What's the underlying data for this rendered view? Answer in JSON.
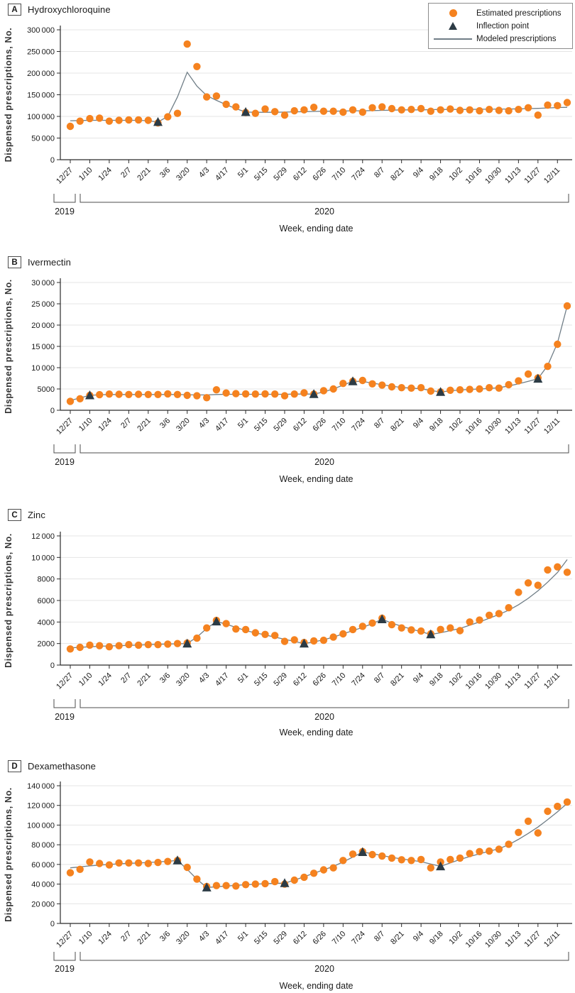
{
  "figure": {
    "ylabel": "Dispensed prescriptions, No.",
    "xlabel": "Week, ending date",
    "year_left": "2019",
    "year_right": "2020",
    "legend": [
      {
        "label": "Estimated prescriptions",
        "marker": "circle"
      },
      {
        "label": "Inflection point",
        "marker": "triangle"
      },
      {
        "label": "Modeled prescriptions",
        "marker": "line"
      }
    ],
    "colors": {
      "estimated": "#F5821F",
      "inflection": "#2C3B45",
      "modeled": "#707E87",
      "grid": "#E4E4E4",
      "axis": "#2b2b2b",
      "text": "#1a1a1a"
    }
  },
  "weeks": [
    "12/27",
    "1/3",
    "1/10",
    "1/17",
    "1/24",
    "1/31",
    "2/7",
    "2/14",
    "2/21",
    "2/28",
    "3/6",
    "3/13",
    "3/20",
    "3/27",
    "4/3",
    "4/10",
    "4/17",
    "4/24",
    "5/1",
    "5/8",
    "5/15",
    "5/22",
    "5/29",
    "6/5",
    "6/12",
    "6/19",
    "6/26",
    "7/3",
    "7/10",
    "7/17",
    "7/24",
    "7/31",
    "8/7",
    "8/14",
    "8/21",
    "8/28",
    "9/4",
    "9/11",
    "9/18",
    "9/25",
    "10/2",
    "10/9",
    "10/16",
    "10/23",
    "10/30",
    "11/6",
    "11/13",
    "11/20",
    "11/27",
    "12/4",
    "12/11",
    "12/18"
  ],
  "x_tick_labels": [
    "12/27",
    "1/10",
    "1/24",
    "2/7",
    "2/21",
    "3/6",
    "3/20",
    "4/3",
    "4/17",
    "5/1",
    "5/15",
    "5/29",
    "6/12",
    "6/26",
    "7/10",
    "7/24",
    "8/7",
    "8/21",
    "9/4",
    "9/18",
    "10/2",
    "10/16",
    "10/30",
    "11/13",
    "11/27",
    "12/11"
  ],
  "chart_data": [
    {
      "panel": "A",
      "title": "Hydroxychloroquine",
      "type": "scatter",
      "xlabel": "Week, ending date",
      "ylabel": "Dispensed prescriptions, No.",
      "ylim": [
        0,
        300000
      ],
      "y_tick_labels": [
        "0",
        "50 000",
        "100 000",
        "150 000",
        "200 000",
        "250 000",
        "300 000"
      ],
      "grid": true,
      "legend_position": "top-right",
      "series": [
        {
          "name": "Estimated prescriptions",
          "values": [
            77000,
            89000,
            95000,
            96000,
            89000,
            91000,
            92000,
            92000,
            91000,
            85000,
            99000,
            107000,
            267000,
            215000,
            145000,
            147000,
            128000,
            122000,
            109000,
            107000,
            117000,
            111000,
            103000,
            113000,
            115000,
            121000,
            112000,
            112000,
            110000,
            115000,
            110000,
            120000,
            122000,
            118000,
            115000,
            116000,
            118000,
            112000,
            115000,
            117000,
            114000,
            115000,
            113000,
            116000,
            114000,
            113000,
            116000,
            120000,
            103000,
            126000,
            125000,
            132000
          ]
        },
        {
          "name": "Modeled prescriptions",
          "values": [
            90000,
            90500,
            91000,
            91000,
            91000,
            91000,
            91000,
            91000,
            90000,
            87000,
            100000,
            145000,
            202000,
            170000,
            148000,
            137000,
            127000,
            118000,
            110000,
            109500,
            109500,
            109500,
            110000,
            110500,
            111000,
            111500,
            112000,
            112000,
            112500,
            113000,
            113000,
            113500,
            114000,
            114500,
            115000,
            115000,
            115000,
            115500,
            116000,
            116000,
            116000,
            116000,
            116500,
            116500,
            117000,
            117000,
            117500,
            118000,
            118500,
            119500,
            120500,
            121000
          ]
        }
      ],
      "inflection_points": [
        {
          "week": "2/28",
          "value": 87000
        },
        {
          "week": "5/1",
          "value": 110000
        }
      ]
    },
    {
      "panel": "B",
      "title": "Ivermectin",
      "type": "scatter",
      "xlabel": "Week, ending date",
      "ylabel": "Dispensed prescriptions, No.",
      "ylim": [
        0,
        30000
      ],
      "y_tick_labels": [
        "0",
        "5000",
        "10 000",
        "15 000",
        "20 000",
        "25 000",
        "30 000"
      ],
      "grid": true,
      "series": [
        {
          "name": "Estimated prescriptions",
          "values": [
            2100,
            2700,
            3500,
            3650,
            3800,
            3750,
            3700,
            3750,
            3700,
            3700,
            3850,
            3700,
            3500,
            3400,
            2950,
            4800,
            4050,
            3900,
            3850,
            3800,
            3850,
            3800,
            3400,
            3800,
            4100,
            3800,
            4600,
            5000,
            6300,
            6800,
            7000,
            6200,
            5900,
            5500,
            5300,
            5200,
            5300,
            4500,
            4300,
            4700,
            4800,
            4900,
            5000,
            5300,
            5200,
            6000,
            6900,
            8500,
            7600,
            10300,
            15500,
            24500
          ]
        },
        {
          "name": "Modeled prescriptions",
          "values": [
            2300,
            2900,
            3500,
            3650,
            3700,
            3700,
            3700,
            3700,
            3700,
            3700,
            3700,
            3700,
            3650,
            3600,
            3600,
            3700,
            3750,
            3750,
            3750,
            3750,
            3750,
            3750,
            3750,
            3800,
            3800,
            3800,
            4300,
            5000,
            5900,
            6800,
            6750,
            6400,
            6000,
            5650,
            5350,
            5200,
            5050,
            4650,
            4300,
            4550,
            4750,
            4900,
            5000,
            5100,
            5300,
            5700,
            6200,
            6800,
            7400,
            10500,
            15800,
            24500
          ]
        }
      ],
      "inflection_points": [
        {
          "week": "1/10",
          "value": 3500
        },
        {
          "week": "6/19",
          "value": 3800
        },
        {
          "week": "7/17",
          "value": 6800
        },
        {
          "week": "9/18",
          "value": 4300
        },
        {
          "week": "11/27",
          "value": 7400
        }
      ]
    },
    {
      "panel": "C",
      "title": "Zinc",
      "type": "scatter",
      "xlabel": "Week, ending date",
      "ylabel": "Dispensed prescriptions, No.",
      "ylim": [
        0,
        12000
      ],
      "y_tick_labels": [
        "0",
        "2000",
        "4000",
        "6000",
        "8000",
        "10 000",
        "12 000"
      ],
      "grid": true,
      "series": [
        {
          "name": "Estimated prescriptions",
          "values": [
            1500,
            1650,
            1850,
            1800,
            1700,
            1800,
            1900,
            1850,
            1900,
            1900,
            1950,
            2000,
            2050,
            2500,
            3450,
            4150,
            3850,
            3350,
            3300,
            3000,
            2850,
            2750,
            2200,
            2350,
            2100,
            2250,
            2300,
            2600,
            2900,
            3300,
            3600,
            3900,
            4350,
            3750,
            3450,
            3270,
            3160,
            2900,
            3310,
            3450,
            3200,
            4000,
            4180,
            4630,
            4790,
            5330,
            6760,
            7630,
            7410,
            8840,
            9120,
            8620
          ]
        },
        {
          "name": "Modeled prescriptions",
          "values": [
            1600,
            1650,
            1700,
            1750,
            1780,
            1800,
            1830,
            1860,
            1900,
            1930,
            1960,
            1980,
            2000,
            2600,
            3400,
            4050,
            3800,
            3500,
            3200,
            3000,
            2800,
            2600,
            2400,
            2200,
            2000,
            2150,
            2350,
            2600,
            2900,
            3200,
            3500,
            3850,
            4250,
            3900,
            3600,
            3350,
            3100,
            2850,
            3000,
            3200,
            3400,
            3700,
            4000,
            4350,
            4700,
            5100,
            5600,
            6200,
            6900,
            7700,
            8600,
            9800
          ]
        }
      ],
      "inflection_points": [
        {
          "week": "3/20",
          "value": 2000
        },
        {
          "week": "4/10",
          "value": 4050
        },
        {
          "week": "6/12",
          "value": 2000
        },
        {
          "week": "8/7",
          "value": 4250
        },
        {
          "week": "9/11",
          "value": 2850
        }
      ]
    },
    {
      "panel": "D",
      "title": "Dexamethasone",
      "type": "scatter",
      "xlabel": "Week, ending date",
      "ylabel": "Dispensed prescriptions, No.",
      "ylim": [
        0,
        140000
      ],
      "y_tick_labels": [
        "0",
        "20 000",
        "40 000",
        "60 000",
        "80 000",
        "100 000",
        "120 000",
        "140 000"
      ],
      "grid": true,
      "series": [
        {
          "name": "Estimated prescriptions",
          "values": [
            51500,
            55000,
            62500,
            61000,
            59500,
            61500,
            61500,
            61500,
            61000,
            62000,
            63000,
            64000,
            57000,
            45000,
            37500,
            38500,
            38500,
            38000,
            39500,
            40000,
            40500,
            42500,
            40000,
            44000,
            47000,
            51000,
            54500,
            56500,
            64000,
            70500,
            73000,
            70000,
            68500,
            66500,
            64700,
            64000,
            65000,
            56500,
            62500,
            65000,
            66500,
            71000,
            73000,
            73500,
            75500,
            80500,
            92500,
            104000,
            92000,
            114000,
            119000,
            123500
          ]
        },
        {
          "name": "Modeled prescriptions",
          "values": [
            56500,
            57500,
            58500,
            59300,
            60000,
            60600,
            61100,
            61500,
            62000,
            62500,
            63200,
            64000,
            55000,
            45000,
            36500,
            37300,
            38000,
            38700,
            39300,
            39900,
            40400,
            40800,
            41000,
            44000,
            47500,
            51000,
            54500,
            58000,
            62500,
            67500,
            72500,
            71000,
            69000,
            67200,
            65600,
            64200,
            62800,
            60400,
            58000,
            61500,
            65000,
            68000,
            70800,
            73400,
            76000,
            80000,
            85500,
            91500,
            98000,
            105500,
            113500,
            122000
          ]
        }
      ],
      "inflection_points": [
        {
          "week": "3/13",
          "value": 64000
        },
        {
          "week": "4/3",
          "value": 36500
        },
        {
          "week": "5/29",
          "value": 41000
        },
        {
          "week": "7/24",
          "value": 72500
        },
        {
          "week": "9/18",
          "value": 58000
        }
      ]
    }
  ]
}
